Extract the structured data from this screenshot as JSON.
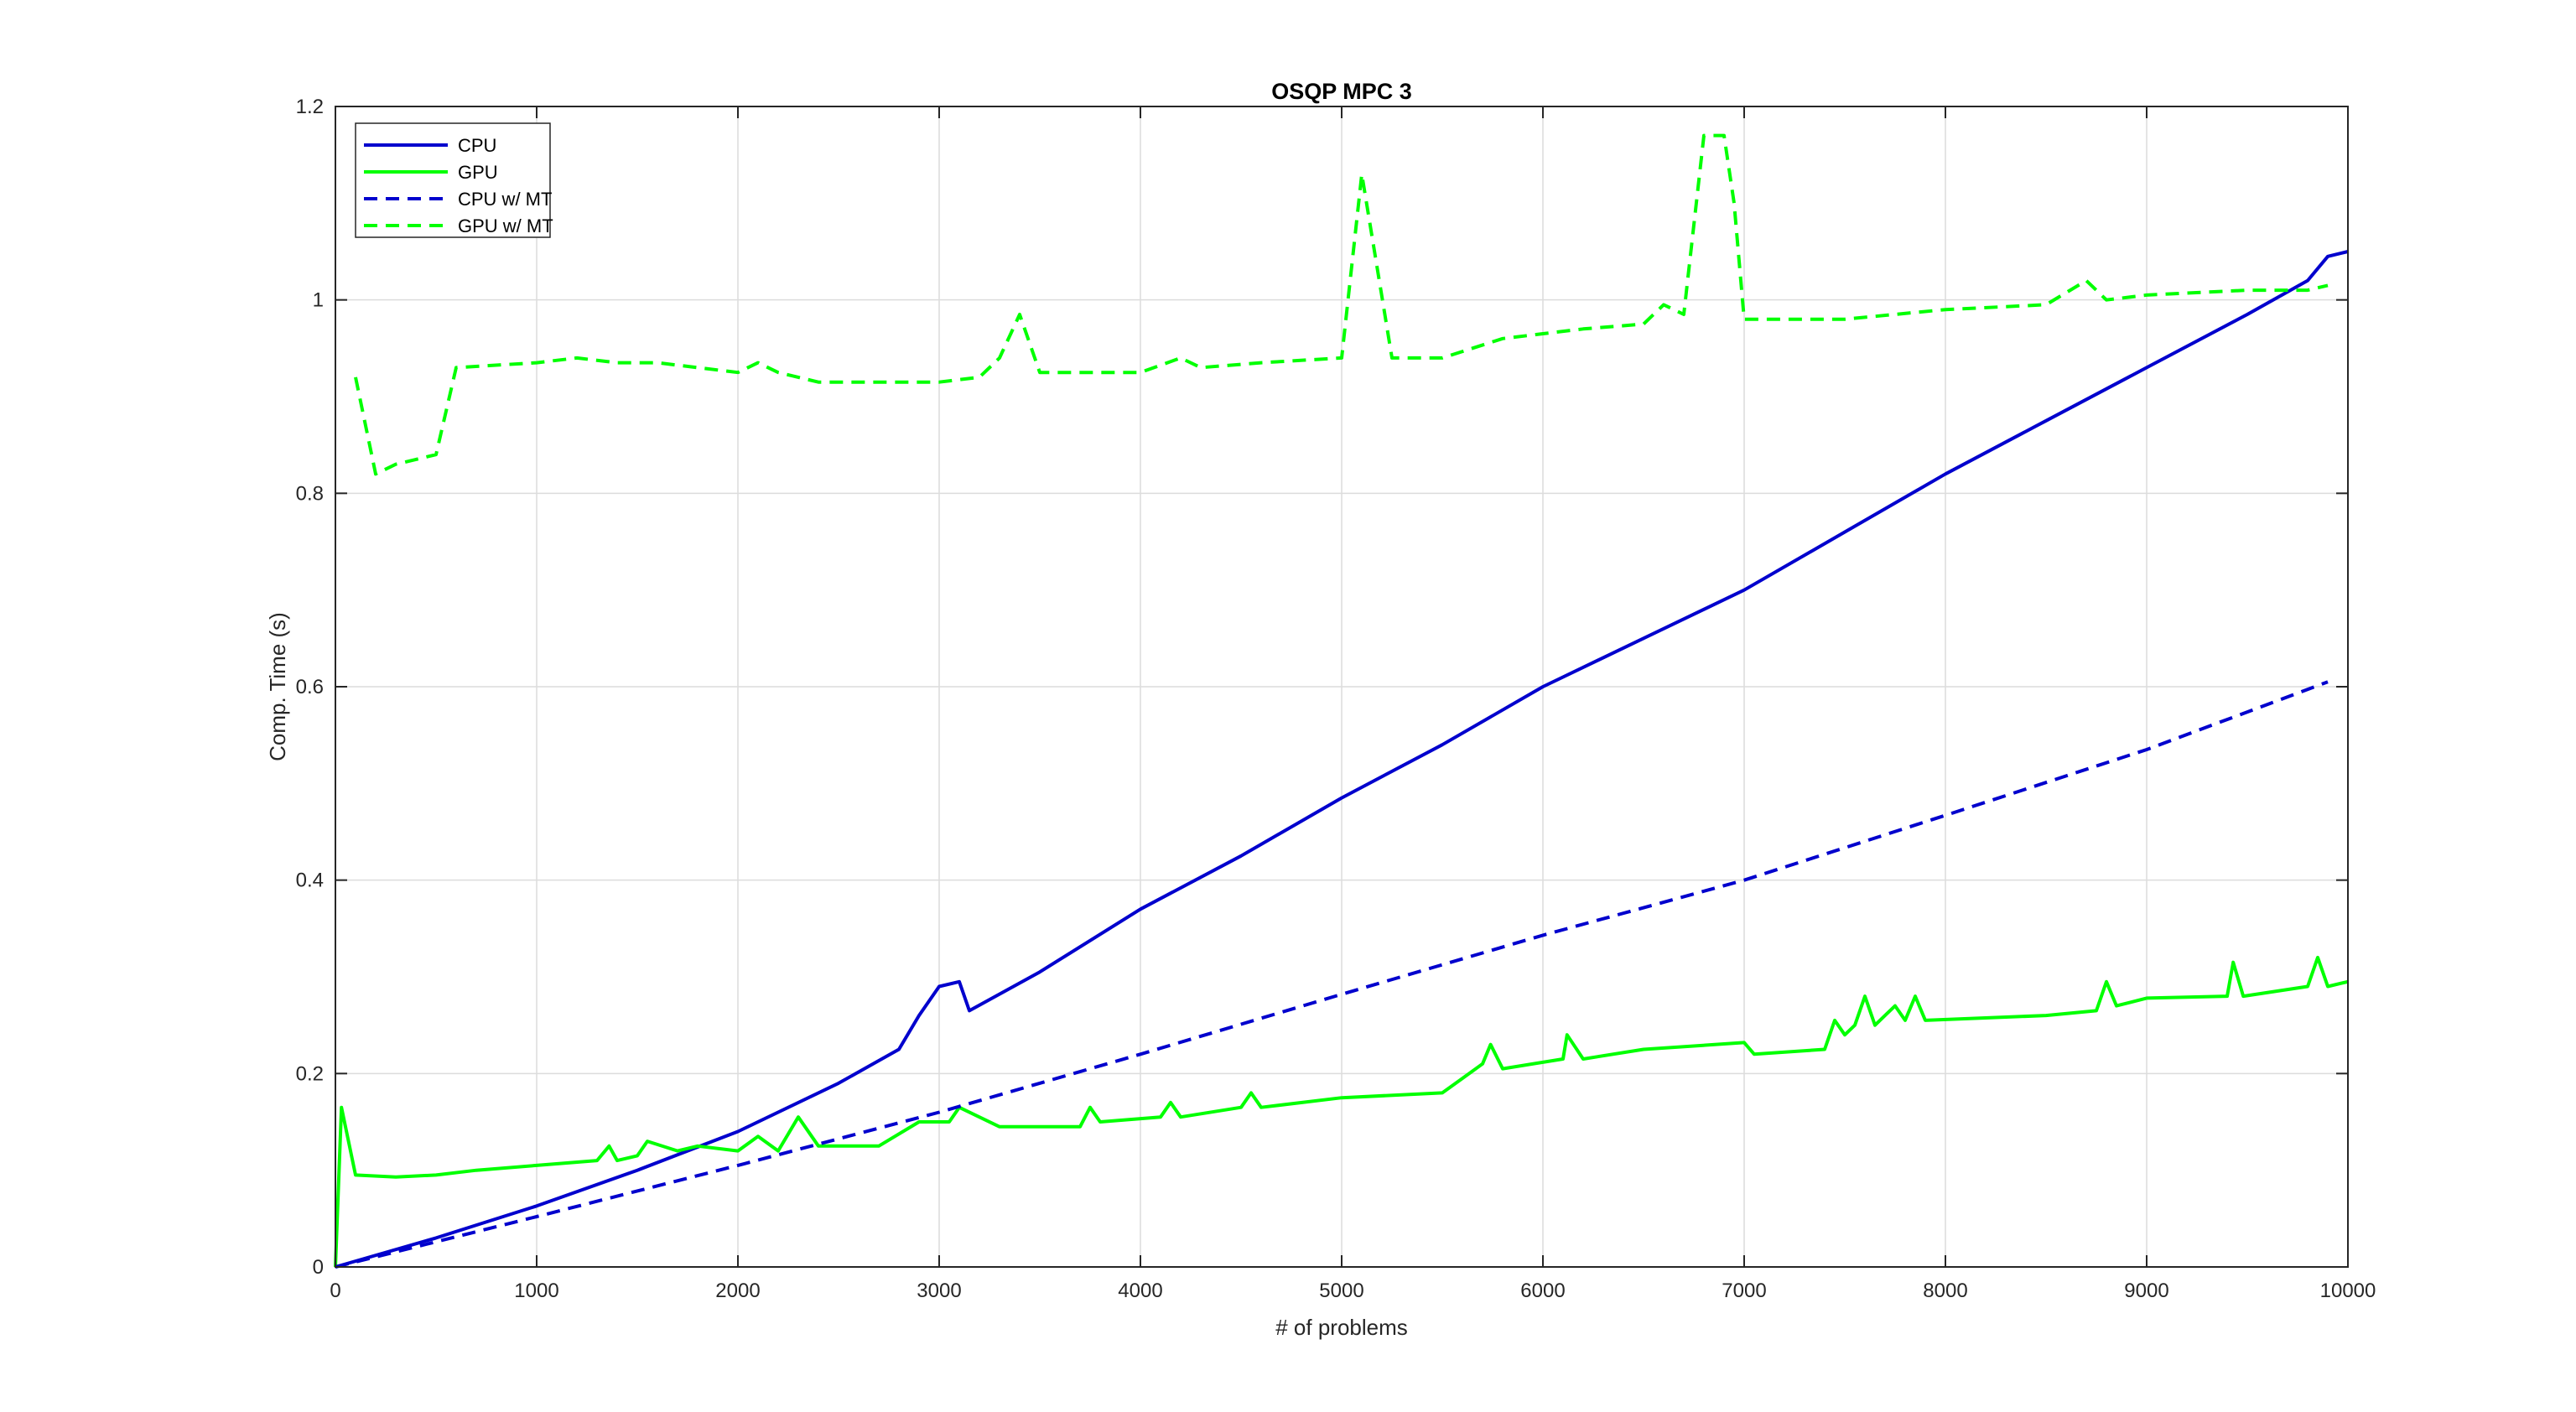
{
  "chart_data": {
    "type": "line",
    "title": "OSQP MPC 3",
    "xlabel": "# of problems",
    "ylabel": "Comp. Time (s)",
    "xlim": [
      0,
      10000
    ],
    "ylim": [
      0,
      1.2
    ],
    "xticks": [
      0,
      1000,
      2000,
      3000,
      4000,
      5000,
      6000,
      7000,
      8000,
      9000,
      10000
    ],
    "yticks": [
      0,
      0.2,
      0.4,
      0.6,
      0.8,
      1,
      1.2
    ],
    "xtick_labels": [
      "0",
      "1000",
      "2000",
      "3000",
      "4000",
      "5000",
      "6000",
      "7000",
      "8000",
      "9000",
      "10000"
    ],
    "ytick_labels": [
      "0",
      "0.2",
      "0.4",
      "0.6",
      "0.8",
      "1",
      "1.2"
    ],
    "grid": true,
    "legend_position": "top-left",
    "series": [
      {
        "name": "CPU",
        "color": "#0000CD",
        "style": "solid",
        "x": [
          0,
          500,
          1000,
          1500,
          2000,
          2500,
          2800,
          2900,
          3000,
          3100,
          3150,
          3500,
          4000,
          4500,
          5000,
          5500,
          6000,
          6500,
          7000,
          7500,
          8000,
          8500,
          9000,
          9500,
          9800,
          9900,
          10000
        ],
        "y": [
          0,
          0.03,
          0.063,
          0.1,
          0.14,
          0.19,
          0.225,
          0.26,
          0.29,
          0.295,
          0.265,
          0.305,
          0.37,
          0.425,
          0.485,
          0.54,
          0.6,
          0.65,
          0.7,
          0.76,
          0.82,
          0.875,
          0.93,
          0.985,
          1.02,
          1.045,
          1.05
        ]
      },
      {
        "name": "GPU",
        "color": "#00FF00",
        "style": "solid",
        "x": [
          0,
          30,
          100,
          300,
          500,
          700,
          1000,
          1300,
          1360,
          1400,
          1500,
          1550,
          1700,
          1800,
          2000,
          2100,
          2200,
          2300,
          2400,
          2700,
          2900,
          3050,
          3100,
          3300,
          3700,
          3750,
          3800,
          4100,
          4150,
          4200,
          4500,
          4550,
          4600,
          5000,
          5500,
          5600,
          5700,
          5740,
          5800,
          6100,
          6120,
          6200,
          6500,
          7000,
          7050,
          7400,
          7450,
          7500,
          7550,
          7600,
          7650,
          7700,
          7750,
          7800,
          7850,
          7900,
          8500,
          8750,
          8800,
          8850,
          9000,
          9400,
          9430,
          9480,
          9800,
          9850,
          9900,
          10000
        ],
        "y": [
          0,
          0.165,
          0.095,
          0.093,
          0.095,
          0.1,
          0.105,
          0.11,
          0.125,
          0.11,
          0.115,
          0.13,
          0.12,
          0.125,
          0.12,
          0.135,
          0.12,
          0.155,
          0.125,
          0.125,
          0.15,
          0.15,
          0.165,
          0.145,
          0.145,
          0.165,
          0.15,
          0.155,
          0.17,
          0.155,
          0.165,
          0.18,
          0.165,
          0.175,
          0.18,
          0.195,
          0.21,
          0.23,
          0.205,
          0.215,
          0.24,
          0.215,
          0.225,
          0.232,
          0.22,
          0.225,
          0.255,
          0.24,
          0.25,
          0.28,
          0.25,
          0.26,
          0.27,
          0.255,
          0.28,
          0.255,
          0.26,
          0.265,
          0.295,
          0.27,
          0.278,
          0.28,
          0.315,
          0.28,
          0.29,
          0.32,
          0.29,
          0.295
        ]
      },
      {
        "name": "CPU w/ MT",
        "color": "#0000CD",
        "style": "dashed",
        "x": [
          0,
          1000,
          2000,
          3000,
          4000,
          5000,
          6000,
          7000,
          8000,
          9000,
          9900
        ],
        "y": [
          0,
          0.052,
          0.105,
          0.16,
          0.22,
          0.282,
          0.343,
          0.4,
          0.467,
          0.535,
          0.605
        ]
      },
      {
        "name": "GPU w/ MT",
        "color": "#00FF00",
        "style": "dashed",
        "x": [
          100,
          200,
          300,
          500,
          600,
          1000,
          1200,
          1400,
          1600,
          1800,
          2000,
          2100,
          2200,
          2400,
          2600,
          3000,
          3200,
          3300,
          3400,
          3500,
          3800,
          4000,
          4200,
          4300,
          4600,
          5000,
          5100,
          5250,
          5500,
          5800,
          6000,
          6200,
          6500,
          6600,
          6700,
          6800,
          6900,
          6950,
          7000,
          7500,
          8000,
          8500,
          8700,
          8800,
          9000,
          9500,
          9800,
          9900
        ],
        "y": [
          0.92,
          0.82,
          0.83,
          0.84,
          0.93,
          0.935,
          0.94,
          0.935,
          0.935,
          0.93,
          0.925,
          0.935,
          0.925,
          0.915,
          0.915,
          0.915,
          0.92,
          0.94,
          0.985,
          0.925,
          0.925,
          0.925,
          0.94,
          0.93,
          0.935,
          0.94,
          1.13,
          0.94,
          0.94,
          0.96,
          0.965,
          0.97,
          0.975,
          0.995,
          0.985,
          1.17,
          1.17,
          1.1,
          0.98,
          0.98,
          0.99,
          0.995,
          1.02,
          1.0,
          1.005,
          1.01,
          1.01,
          1.015
        ]
      }
    ]
  }
}
